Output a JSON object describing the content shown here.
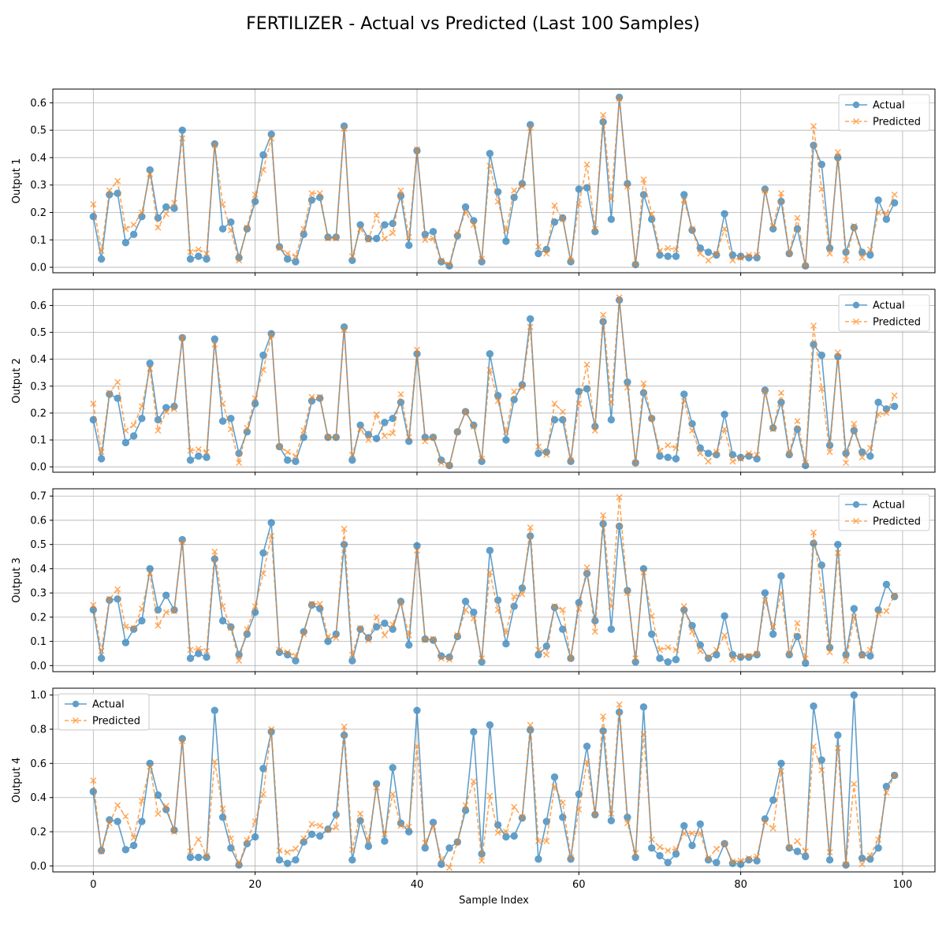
{
  "figure": {
    "title": "FERTILIZER - Actual vs Predicted (Last 100 Samples)",
    "xlabel": "Sample Index"
  },
  "colors": {
    "actual": "#1f77b4",
    "predicted": "#ff7f0e",
    "grid": "#b0b0b0"
  },
  "chart_data": [
    {
      "type": "line",
      "ylabel": "Output 1",
      "xlim": [
        -5,
        104
      ],
      "ylim": [
        -0.02,
        0.65
      ],
      "xticks": [
        0,
        20,
        40,
        60,
        80,
        100
      ],
      "yticks": [
        0.0,
        0.1,
        0.2,
        0.3,
        0.4,
        0.5,
        0.6
      ],
      "ytick_labels": [
        "0.0",
        "0.1",
        "0.2",
        "0.3",
        "0.4",
        "0.5",
        "0.6"
      ],
      "grid": true,
      "legend": "upper-right",
      "series": [
        {
          "name": "Actual",
          "values": [
            0.185,
            0.03,
            0.265,
            0.27,
            0.09,
            0.12,
            0.185,
            0.355,
            0.18,
            0.22,
            0.215,
            0.5,
            0.03,
            0.04,
            0.03,
            0.45,
            0.14,
            0.165,
            0.035,
            0.14,
            0.24,
            0.41,
            0.485,
            0.075,
            0.03,
            0.02,
            0.12,
            0.245,
            0.255,
            0.11,
            0.11,
            0.515,
            0.025,
            0.155,
            0.105,
            0.105,
            0.155,
            0.16,
            0.26,
            0.08,
            0.425,
            0.12,
            0.13,
            0.02,
            0.005,
            0.115,
            0.22,
            0.17,
            0.02,
            0.415,
            0.275,
            0.095,
            0.255,
            0.305,
            0.52,
            0.05,
            0.065,
            0.165,
            0.18,
            0.02,
            0.285,
            0.29,
            0.13,
            0.53,
            0.175,
            0.62,
            0.305,
            0.01,
            0.265,
            0.175,
            0.045,
            0.04,
            0.04,
            0.265,
            0.135,
            0.07,
            0.055,
            0.045,
            0.195,
            0.045,
            0.04,
            0.035,
            0.035,
            0.285,
            0.14,
            0.24,
            0.05,
            0.14,
            0.005,
            0.445,
            0.375,
            0.07,
            0.4,
            0.055,
            0.145,
            0.055,
            0.045,
            0.245,
            0.175,
            0.235
          ]
        },
        {
          "name": "Predicted",
          "values": [
            0.23,
            0.06,
            0.28,
            0.315,
            0.14,
            0.155,
            0.2,
            0.34,
            0.145,
            0.195,
            0.235,
            0.47,
            0.055,
            0.065,
            0.05,
            0.445,
            0.23,
            0.135,
            0.025,
            0.145,
            0.265,
            0.355,
            0.47,
            0.07,
            0.05,
            0.04,
            0.14,
            0.27,
            0.27,
            0.105,
            0.105,
            0.505,
            0.04,
            0.14,
            0.1,
            0.19,
            0.105,
            0.125,
            0.28,
            0.11,
            0.43,
            0.1,
            0.105,
            0.025,
            0.01,
            0.125,
            0.2,
            0.155,
            0.03,
            0.37,
            0.24,
            0.135,
            0.28,
            0.295,
            0.51,
            0.075,
            0.05,
            0.225,
            0.175,
            0.025,
            0.23,
            0.375,
            0.14,
            0.555,
            0.25,
            0.615,
            0.295,
            0.01,
            0.32,
            0.195,
            0.06,
            0.07,
            0.065,
            0.245,
            0.14,
            0.05,
            0.025,
            0.05,
            0.14,
            0.025,
            0.035,
            0.045,
            0.045,
            0.28,
            0.15,
            0.27,
            0.05,
            0.18,
            0.005,
            0.515,
            0.285,
            0.05,
            0.42,
            0.025,
            0.15,
            0.035,
            0.065,
            0.2,
            0.195,
            0.265
          ]
        }
      ]
    },
    {
      "type": "line",
      "ylabel": "Output 2",
      "xlim": [
        -5,
        104
      ],
      "ylim": [
        -0.02,
        0.66
      ],
      "xticks": [
        0,
        20,
        40,
        60,
        80,
        100
      ],
      "yticks": [
        0.0,
        0.1,
        0.2,
        0.3,
        0.4,
        0.5,
        0.6
      ],
      "ytick_labels": [
        "0.0",
        "0.1",
        "0.2",
        "0.3",
        "0.4",
        "0.5",
        "0.6"
      ],
      "grid": true,
      "legend": "upper-right",
      "series": [
        {
          "name": "Actual",
          "values": [
            0.175,
            0.03,
            0.27,
            0.255,
            0.09,
            0.115,
            0.18,
            0.385,
            0.175,
            0.22,
            0.225,
            0.48,
            0.025,
            0.04,
            0.035,
            0.475,
            0.17,
            0.18,
            0.05,
            0.13,
            0.235,
            0.415,
            0.495,
            0.075,
            0.025,
            0.02,
            0.11,
            0.245,
            0.255,
            0.11,
            0.11,
            0.52,
            0.025,
            0.155,
            0.12,
            0.105,
            0.165,
            0.18,
            0.24,
            0.095,
            0.42,
            0.11,
            0.11,
            0.025,
            0.005,
            0.13,
            0.205,
            0.155,
            0.02,
            0.42,
            0.265,
            0.1,
            0.25,
            0.305,
            0.55,
            0.05,
            0.055,
            0.175,
            0.175,
            0.02,
            0.28,
            0.29,
            0.15,
            0.54,
            0.175,
            0.62,
            0.315,
            0.015,
            0.275,
            0.18,
            0.04,
            0.035,
            0.03,
            0.27,
            0.16,
            0.07,
            0.05,
            0.045,
            0.195,
            0.045,
            0.035,
            0.04,
            0.03,
            0.285,
            0.145,
            0.24,
            0.045,
            0.14,
            0.005,
            0.455,
            0.415,
            0.08,
            0.41,
            0.05,
            0.135,
            0.055,
            0.04,
            0.24,
            0.215,
            0.225
          ]
        },
        {
          "name": "Predicted",
          "values": [
            0.235,
            0.055,
            0.275,
            0.315,
            0.135,
            0.155,
            0.225,
            0.365,
            0.135,
            0.205,
            0.215,
            0.48,
            0.06,
            0.065,
            0.055,
            0.455,
            0.235,
            0.14,
            0.015,
            0.145,
            0.255,
            0.36,
            0.49,
            0.075,
            0.055,
            0.04,
            0.135,
            0.26,
            0.26,
            0.11,
            0.11,
            0.51,
            0.045,
            0.14,
            0.1,
            0.195,
            0.115,
            0.125,
            0.27,
            0.11,
            0.435,
            0.095,
            0.11,
            0.015,
            0.005,
            0.13,
            0.205,
            0.15,
            0.03,
            0.36,
            0.245,
            0.13,
            0.28,
            0.295,
            0.52,
            0.075,
            0.045,
            0.235,
            0.205,
            0.025,
            0.235,
            0.38,
            0.135,
            0.565,
            0.24,
            0.63,
            0.295,
            0.015,
            0.31,
            0.18,
            0.06,
            0.08,
            0.07,
            0.245,
            0.135,
            0.05,
            0.02,
            0.055,
            0.14,
            0.02,
            0.03,
            0.05,
            0.045,
            0.28,
            0.14,
            0.275,
            0.05,
            0.17,
            0.015,
            0.525,
            0.29,
            0.055,
            0.425,
            0.015,
            0.16,
            0.035,
            0.07,
            0.195,
            0.2,
            0.265
          ]
        }
      ]
    },
    {
      "type": "line",
      "ylabel": "Output 3",
      "xlim": [
        -5,
        104
      ],
      "ylim": [
        -0.025,
        0.73
      ],
      "xticks": [
        0,
        20,
        40,
        60,
        80,
        100
      ],
      "yticks": [
        0.0,
        0.1,
        0.2,
        0.3,
        0.4,
        0.5,
        0.6,
        0.7
      ],
      "ytick_labels": [
        "0.0",
        "0.1",
        "0.2",
        "0.3",
        "0.4",
        "0.5",
        "0.6",
        "0.7"
      ],
      "grid": true,
      "legend": "upper-right",
      "series": [
        {
          "name": "Actual",
          "values": [
            0.23,
            0.03,
            0.27,
            0.275,
            0.095,
            0.15,
            0.185,
            0.4,
            0.23,
            0.29,
            0.23,
            0.52,
            0.03,
            0.05,
            0.035,
            0.44,
            0.185,
            0.16,
            0.045,
            0.13,
            0.22,
            0.465,
            0.59,
            0.055,
            0.045,
            0.02,
            0.14,
            0.25,
            0.235,
            0.1,
            0.13,
            0.5,
            0.02,
            0.15,
            0.115,
            0.16,
            0.175,
            0.15,
            0.265,
            0.085,
            0.495,
            0.11,
            0.105,
            0.04,
            0.035,
            0.12,
            0.265,
            0.22,
            0.015,
            0.475,
            0.27,
            0.09,
            0.245,
            0.32,
            0.535,
            0.045,
            0.08,
            0.24,
            0.15,
            0.03,
            0.26,
            0.38,
            0.185,
            0.585,
            0.15,
            0.575,
            0.31,
            0.015,
            0.4,
            0.13,
            0.03,
            0.015,
            0.025,
            0.23,
            0.165,
            0.085,
            0.03,
            0.045,
            0.205,
            0.045,
            0.035,
            0.035,
            0.045,
            0.3,
            0.13,
            0.37,
            0.045,
            0.12,
            0.01,
            0.505,
            0.415,
            0.075,
            0.5,
            0.045,
            0.235,
            0.045,
            0.04,
            0.23,
            0.335,
            0.285
          ]
        },
        {
          "name": "Predicted",
          "values": [
            0.25,
            0.06,
            0.275,
            0.315,
            0.16,
            0.155,
            0.235,
            0.38,
            0.165,
            0.22,
            0.225,
            0.51,
            0.065,
            0.07,
            0.06,
            0.47,
            0.245,
            0.155,
            0.02,
            0.15,
            0.245,
            0.38,
            0.535,
            0.065,
            0.055,
            0.04,
            0.13,
            0.255,
            0.255,
            0.12,
            0.115,
            0.565,
            0.045,
            0.155,
            0.105,
            0.2,
            0.125,
            0.17,
            0.26,
            0.125,
            0.475,
            0.105,
            0.11,
            0.03,
            0.025,
            0.125,
            0.23,
            0.195,
            0.03,
            0.385,
            0.23,
            0.135,
            0.285,
            0.295,
            0.57,
            0.065,
            0.045,
            0.245,
            0.23,
            0.03,
            0.235,
            0.405,
            0.14,
            0.62,
            0.245,
            0.695,
            0.3,
            0.03,
            0.385,
            0.205,
            0.065,
            0.075,
            0.065,
            0.245,
            0.14,
            0.06,
            0.035,
            0.065,
            0.125,
            0.025,
            0.04,
            0.04,
            0.05,
            0.27,
            0.16,
            0.3,
            0.05,
            0.175,
            0.03,
            0.55,
            0.31,
            0.055,
            0.465,
            0.02,
            0.2,
            0.04,
            0.065,
            0.215,
            0.225,
            0.29
          ]
        }
      ]
    },
    {
      "type": "line",
      "ylabel": "Output 4",
      "xlim": [
        -5,
        104
      ],
      "ylim": [
        -0.035,
        1.04
      ],
      "xticks": [
        0,
        20,
        40,
        60,
        80,
        100
      ],
      "yticks": [
        0.0,
        0.2,
        0.4,
        0.6,
        0.8,
        1.0
      ],
      "ytick_labels": [
        "0.0",
        "0.2",
        "0.4",
        "0.6",
        "0.8",
        "1.0"
      ],
      "grid": true,
      "legend": "upper-left",
      "series": [
        {
          "name": "Actual",
          "values": [
            0.435,
            0.09,
            0.27,
            0.26,
            0.095,
            0.12,
            0.26,
            0.6,
            0.415,
            0.33,
            0.21,
            0.745,
            0.05,
            0.05,
            0.05,
            0.91,
            0.285,
            0.105,
            0.005,
            0.13,
            0.17,
            0.57,
            0.785,
            0.035,
            0.015,
            0.035,
            0.14,
            0.185,
            0.175,
            0.215,
            0.3,
            0.765,
            0.035,
            0.265,
            0.115,
            0.48,
            0.145,
            0.575,
            0.25,
            0.2,
            0.91,
            0.105,
            0.255,
            0.01,
            0.105,
            0.14,
            0.325,
            0.785,
            0.07,
            0.825,
            0.24,
            0.17,
            0.175,
            0.28,
            0.795,
            0.04,
            0.26,
            0.52,
            0.285,
            0.04,
            0.42,
            0.7,
            0.3,
            0.79,
            0.265,
            0.9,
            0.285,
            0.05,
            0.93,
            0.105,
            0.06,
            0.02,
            0.07,
            0.235,
            0.12,
            0.245,
            0.035,
            0.02,
            0.13,
            0.015,
            0.01,
            0.035,
            0.03,
            0.275,
            0.385,
            0.6,
            0.105,
            0.085,
            0.055,
            0.935,
            0.62,
            0.035,
            0.765,
            0.005,
            1.0,
            0.045,
            0.04,
            0.105,
            0.465,
            0.53
          ]
        },
        {
          "name": "Predicted",
          "values": [
            0.5,
            0.085,
            0.25,
            0.355,
            0.29,
            0.165,
            0.38,
            0.58,
            0.305,
            0.35,
            0.2,
            0.73,
            0.085,
            0.155,
            0.06,
            0.61,
            0.335,
            0.16,
            0.01,
            0.15,
            0.26,
            0.42,
            0.8,
            0.09,
            0.08,
            0.1,
            0.16,
            0.245,
            0.235,
            0.21,
            0.225,
            0.815,
            0.095,
            0.305,
            0.15,
            0.46,
            0.185,
            0.42,
            0.235,
            0.23,
            0.7,
            0.135,
            0.23,
            0.04,
            -0.01,
            0.14,
            0.355,
            0.495,
            0.03,
            0.41,
            0.195,
            0.2,
            0.345,
            0.285,
            0.825,
            0.145,
            0.145,
            0.465,
            0.37,
            0.05,
            0.33,
            0.61,
            0.3,
            0.875,
            0.305,
            0.945,
            0.25,
            0.075,
            0.77,
            0.155,
            0.11,
            0.09,
            0.1,
            0.19,
            0.19,
            0.19,
            0.045,
            0.1,
            0.13,
            0.025,
            0.03,
            0.045,
            0.055,
            0.255,
            0.22,
            0.555,
            0.11,
            0.145,
            0.085,
            0.7,
            0.56,
            0.08,
            0.69,
            0.01,
            0.48,
            0.01,
            0.06,
            0.155,
            0.43,
            0.53
          ]
        }
      ]
    }
  ]
}
